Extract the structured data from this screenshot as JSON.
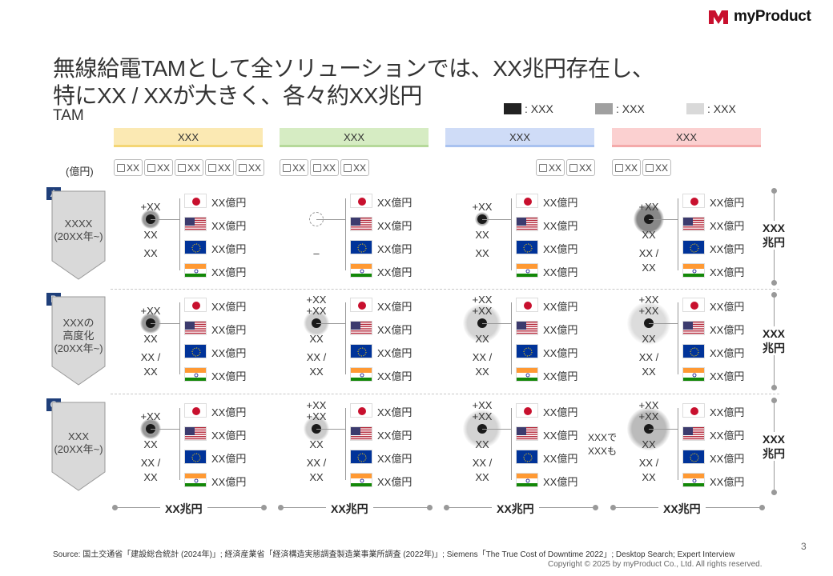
{
  "brand": {
    "name": "myProduct",
    "color": "#c8102e"
  },
  "title_line1": "無線給電TAMとして全ソリューションでは、XX兆円存在し、",
  "title_line2": "特にXX / XXが大きく、各々約XX兆円",
  "subtitle": "TAM",
  "legend": [
    {
      "label": ": XXX",
      "color": "#222222"
    },
    {
      "label": ": XXX",
      "color": "#a0a0a0"
    },
    {
      "label": ": XXX",
      "color": "#d9d9d9"
    }
  ],
  "unit_label": "(億円)",
  "columns": [
    {
      "label": "XXX",
      "color": "#fbe9b3",
      "bar": "#f4d675"
    },
    {
      "label": "XXX",
      "color": "#d6ecc3",
      "bar": "#b6d99a"
    },
    {
      "label": "XXX",
      "color": "#cfdcf7",
      "bar": "#a9c2f0"
    },
    {
      "label": "XXX",
      "color": "#fbd0d0",
      "bar": "#f4aaaa"
    }
  ],
  "icon_chips": {
    "col1": [
      "XX",
      "XX",
      "XX",
      "XX",
      "XX"
    ],
    "col2": [
      "XX",
      "XX",
      "XX"
    ],
    "col3": [
      "XX",
      "XX"
    ],
    "col4": [
      "XX",
      "XX"
    ]
  },
  "rows": [
    {
      "badge": "A",
      "label": "XXXX\n(20XX年~)",
      "total": "XXX\n兆円"
    },
    {
      "badge": "B",
      "label": "XXXの\n高度化\n(20XX年~)",
      "total": "XXX\n兆円"
    },
    {
      "badge": "C",
      "label": "XXX\n(20XX年~)",
      "total": "XXX\n兆円"
    }
  ],
  "amount_label": "XX億円",
  "countries": [
    "japan-flag",
    "usa-flag",
    "eu-flag",
    "india-flag"
  ],
  "cells": {
    "r0c0": {
      "top": "+XX",
      "mid": "XX",
      "bot": "XX"
    },
    "r0c1": {
      "top": "",
      "mid": "",
      "bot": "–"
    },
    "r0c2": {
      "top": "+XX",
      "mid": "XX",
      "bot": "XX"
    },
    "r0c3": {
      "top": "+XX",
      "mid": "XX",
      "bot": "XX /\nXX"
    },
    "r1c0": {
      "top": "+XX",
      "mid": "XX",
      "bot": "XX /\nXX"
    },
    "r1c1": {
      "top": "+XX\n+XX",
      "mid": "XX",
      "bot": "XX /\nXX"
    },
    "r1c2": {
      "top": "+XX\n+XX",
      "mid": "XX",
      "bot": "XX /\nXX"
    },
    "r1c3": {
      "top": "+XX\n+XX",
      "mid": "XX",
      "bot": "XX /\nXX"
    },
    "r2c0": {
      "top": "+XX",
      "mid": "XX",
      "bot": "XX /\nXX"
    },
    "r2c1": {
      "top": "+XX\n+XX",
      "mid": "XX",
      "bot": "XX /\nXX"
    },
    "r2c2": {
      "top": "+XX\n+XX",
      "mid": "XX",
      "bot": "XX /\nXX"
    },
    "r2c3": {
      "top": "+XX\n+XX",
      "mid": "XX",
      "bot": "XX /\nXX"
    }
  },
  "note_r2c3": "XXXで\nXXXも",
  "column_totals": [
    "XX兆円",
    "XX兆円",
    "XX兆円",
    "XX兆円"
  ],
  "footer_source": "Source: 国土交通省「建設総合統計 (2024年)」; 経済産業省「経済構造実態調査製造業事業所調査 (2022年)」; Siemens「The True Cost of Downtime 2022」; Desktop Search; Expert Interview",
  "footer_copy": "Copyright © 2025 by myProduct Co., Ltd.  All rights reserved.",
  "page_number": "3"
}
